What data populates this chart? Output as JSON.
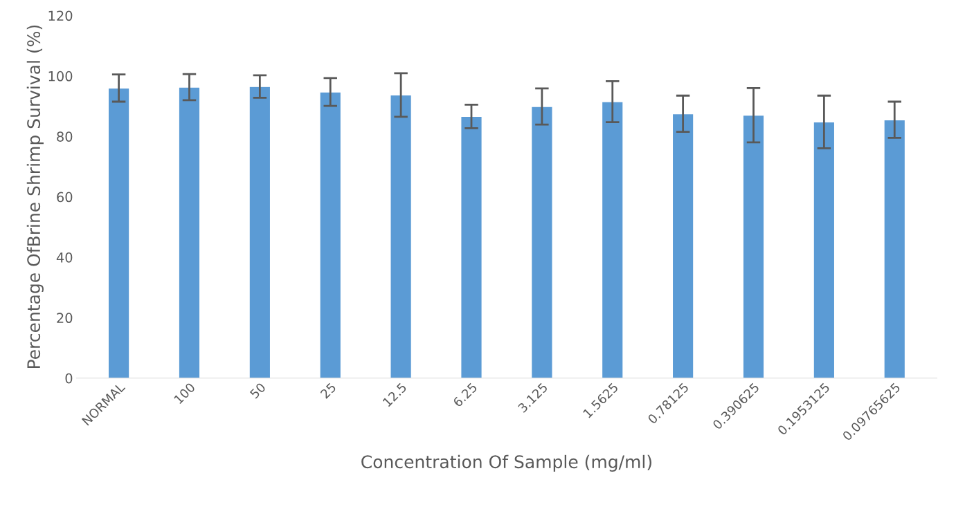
{
  "chart_data": {
    "type": "bar",
    "xlabel": "Concentration Of Sample (mg/ml)",
    "ylabel": "Percentage OfBrine Shrimp Survival (%)",
    "categories": [
      "NORMAL",
      "100",
      "50",
      "25",
      "12.5",
      "6.25",
      "3.125",
      "1.5625",
      "0.78125",
      "0.390625",
      "0.1953125",
      "0.09765625"
    ],
    "values": [
      96,
      96.3,
      96.5,
      94.7,
      93.7,
      86.6,
      89.9,
      91.5,
      87.5,
      87,
      84.8,
      85.5
    ],
    "errors": [
      4.5,
      4.3,
      3.7,
      4.6,
      7.2,
      3.9,
      6,
      6.8,
      6,
      9,
      8.7,
      6
    ],
    "color": "#5b9bd5",
    "ylim": [
      0,
      120
    ],
    "yticks": [
      0,
      20,
      40,
      60,
      80,
      100,
      120
    ],
    "grid": false
  }
}
